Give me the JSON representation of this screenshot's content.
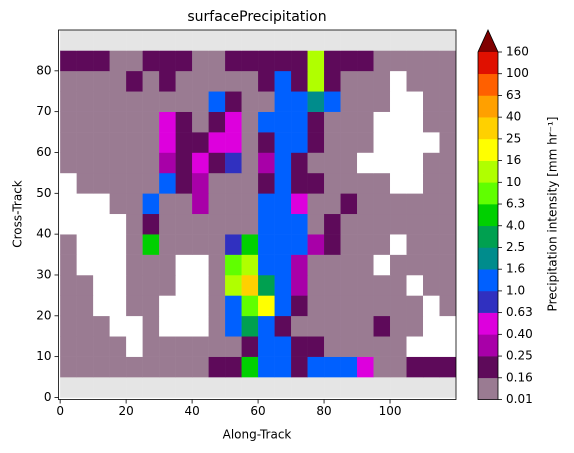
{
  "chart_data": {
    "type": "heatmap",
    "title": "surfacePrecipitation",
    "x_label": "Along-Track",
    "y_label": "Cross-Track",
    "colorbar_label": "Precipitation intensity [mm hr⁻¹]",
    "xlim": [
      -0.5,
      120
    ],
    "ylim": [
      -0.5,
      90
    ],
    "xticks": [
      0,
      20,
      40,
      60,
      80,
      100
    ],
    "yticks": [
      0,
      10,
      20,
      30,
      40,
      50,
      60,
      70,
      80
    ],
    "x_bins": [
      0,
      5,
      10,
      15,
      20,
      25,
      30,
      35,
      40,
      45,
      50,
      55,
      60,
      65,
      70,
      75,
      80,
      85,
      90,
      95,
      100,
      105,
      110,
      115,
      120
    ],
    "y_bins": [
      0,
      5,
      10,
      15,
      20,
      25,
      30,
      35,
      40,
      45,
      50,
      55,
      60,
      65,
      70,
      75,
      80,
      85,
      90
    ],
    "color_bounds": [
      0.01,
      0.16,
      0.25,
      {
        "value": 0.4,
        "label": "0.40"
      },
      0.63,
      {
        "value": 1,
        "label": "1.0"
      },
      1.6,
      2.5,
      {
        "value": 4,
        "label": "4.0"
      },
      6.3,
      10,
      16,
      25,
      40,
      63,
      100,
      160
    ],
    "colors": [
      "#9a7b92",
      "#5e0a5a",
      "#a800a8",
      "#dd00dd",
      "#3030c0",
      "#0060ff",
      "#008c8c",
      "#00a050",
      "#00d000",
      "#60ff00",
      "#b0ff00",
      "#ffff00",
      "#ffd000",
      "#ffa000",
      "#ff6000",
      "#e01000"
    ],
    "extend_color": "#800000",
    "z": [
      [
        null,
        null,
        null,
        null,
        null,
        null,
        null,
        null,
        null,
        null,
        null,
        null,
        null,
        null,
        null,
        null,
        null,
        null,
        null,
        null,
        null,
        null,
        null,
        null
      ],
      [
        0.1,
        0.1,
        0.1,
        0.1,
        0.1,
        0.1,
        0.1,
        0.1,
        0.1,
        0.2,
        0.2,
        5,
        1.2,
        1.2,
        0.2,
        1.2,
        1.2,
        1.2,
        0.5,
        0.1,
        0.1,
        0.2,
        0.2,
        0.2
      ],
      [
        0.1,
        0.1,
        0.1,
        0.1,
        0,
        0.1,
        0.1,
        0.1,
        0.1,
        0.1,
        0.1,
        0.2,
        1.2,
        1.2,
        0.2,
        0.2,
        0.1,
        0.1,
        0.1,
        0.1,
        0.1,
        0,
        0,
        0
      ],
      [
        0.1,
        0.1,
        0.1,
        0,
        0,
        0.1,
        0,
        0,
        0,
        0.1,
        1.2,
        3,
        1.2,
        0.2,
        0.1,
        0.1,
        0.1,
        0.1,
        0.1,
        0.2,
        0.1,
        0.1,
        0,
        0
      ],
      [
        0.1,
        0.1,
        0,
        0,
        0.1,
        0.1,
        0,
        0,
        0,
        0.1,
        1.2,
        8,
        20,
        1.2,
        0.2,
        0.1,
        0.1,
        0.1,
        0.1,
        0.1,
        0.1,
        0.1,
        0,
        0.1
      ],
      [
        0.1,
        0.1,
        0,
        0,
        0.1,
        0.1,
        0.1,
        0,
        0,
        0.1,
        12,
        30,
        3,
        1.2,
        0.3,
        0.1,
        0.1,
        0.1,
        0.1,
        0.1,
        0.1,
        0,
        0.1,
        0.1
      ],
      [
        0.1,
        0,
        0,
        0,
        0.1,
        0.1,
        0.1,
        0,
        0,
        0.1,
        8,
        12,
        1.2,
        1.2,
        0.3,
        0.1,
        0.1,
        0.1,
        0.1,
        0,
        0.1,
        0.1,
        0.1,
        0.1
      ],
      [
        0.1,
        0,
        0,
        0,
        0.1,
        5,
        0.1,
        0.1,
        0.1,
        0.1,
        0.8,
        5,
        1.2,
        1.2,
        1.2,
        0.3,
        0.2,
        0.1,
        0.1,
        0.1,
        0,
        0.1,
        0.1,
        0.1
      ],
      [
        0,
        0,
        0,
        0,
        0.1,
        0.2,
        0.1,
        0.1,
        0.1,
        0.1,
        0.1,
        0.1,
        1.2,
        1.2,
        1.2,
        0.1,
        0.2,
        0.1,
        0.1,
        0.1,
        0.1,
        0.1,
        0.1,
        0.1
      ],
      [
        0,
        0,
        0,
        0.1,
        0.1,
        1.2,
        0.1,
        0.1,
        0.3,
        0.1,
        0.1,
        0.1,
        1.2,
        1.2,
        0.5,
        0.1,
        0.1,
        0.2,
        0.1,
        0.1,
        0.1,
        0.1,
        0.1,
        0.1
      ],
      [
        0,
        0.1,
        0.1,
        0.1,
        0.1,
        0.1,
        1.2,
        0.2,
        0.3,
        0.1,
        0.1,
        0.1,
        0.2,
        1.2,
        0.2,
        0.2,
        0.1,
        0.1,
        0.1,
        0.1,
        0,
        0,
        0.1,
        0.1
      ],
      [
        0.1,
        0.1,
        0.1,
        0.1,
        0.1,
        0.1,
        0.3,
        0.2,
        0.5,
        0.2,
        0.8,
        0.1,
        0.3,
        1.2,
        0.2,
        0.1,
        0.1,
        0.1,
        0,
        0,
        0,
        0,
        0.1,
        0.1
      ],
      [
        0.1,
        0.1,
        0.1,
        0.1,
        0.1,
        0.1,
        0.5,
        0.2,
        0.2,
        0.5,
        0.5,
        0.1,
        0.2,
        1.2,
        1.2,
        0.2,
        0.1,
        0.1,
        0.1,
        0,
        0,
        0,
        0,
        0.1
      ],
      [
        0.1,
        0.1,
        0.1,
        0.1,
        0.1,
        0.1,
        0.5,
        0.2,
        0.1,
        0.2,
        0.5,
        0.1,
        1.2,
        1.2,
        1.2,
        0.2,
        0.1,
        0.1,
        0.1,
        0,
        0,
        0,
        0.1,
        0.1
      ],
      [
        0.1,
        0.1,
        0.1,
        0.1,
        0.1,
        0.1,
        0.1,
        0.1,
        0.1,
        1.2,
        0.2,
        0.1,
        0.1,
        1.2,
        1.2,
        2,
        1.2,
        0.1,
        0.1,
        0.1,
        0,
        0,
        0.1,
        0.1
      ],
      [
        0.1,
        0.1,
        0.1,
        0.1,
        0.2,
        0.1,
        0.2,
        0.1,
        0.1,
        0.1,
        0.1,
        0.1,
        0.2,
        1.2,
        0.2,
        12,
        0.2,
        0.1,
        0.1,
        0.1,
        0,
        0.1,
        0.1,
        0.1
      ],
      [
        0.2,
        0.2,
        0.2,
        0.1,
        0.1,
        0.2,
        0.2,
        0.2,
        0.1,
        0.1,
        0.2,
        0.2,
        0.2,
        0.2,
        0.2,
        12,
        0.2,
        0.2,
        0.2,
        0.1,
        0.1,
        0.1,
        0.1,
        0.1
      ],
      [
        null,
        null,
        null,
        null,
        null,
        null,
        null,
        null,
        null,
        null,
        null,
        null,
        null,
        null,
        null,
        null,
        null,
        null,
        null,
        null,
        null,
        null,
        null,
        null
      ]
    ]
  }
}
